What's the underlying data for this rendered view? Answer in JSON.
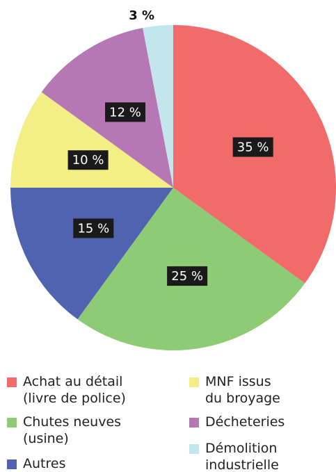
{
  "chart_data": {
    "type": "pie",
    "categories": [
      "Achat au détail\n(livre de police)",
      "Chutes neuves\n(usine)",
      "Autres",
      "MNF issus\ndu broyage",
      "Décheteries",
      "Démolition\nindustrielle"
    ],
    "values": [
      35,
      25,
      15,
      10,
      12,
      3
    ],
    "value_labels": [
      "35 %",
      "25 %",
      "15 %",
      "10 %",
      "12 %",
      "3 %"
    ],
    "colors": [
      "#f26b6b",
      "#8dcc74",
      "#4f63b0",
      "#f3ee85",
      "#b677b5",
      "#c3e6ec"
    ]
  }
}
